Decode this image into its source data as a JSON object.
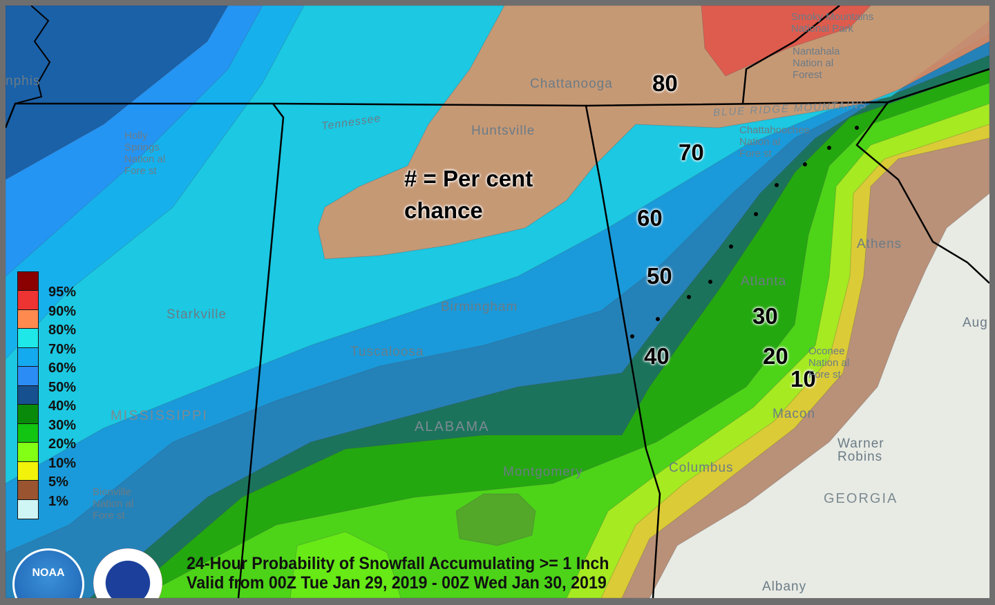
{
  "map": {
    "title_line1": "24-Hour Probability of Snowfall Accumulating >= 1 Inch",
    "title_line2": "Valid from 00Z Tue Jan 29, 2019 - 00Z Wed Jan 30, 2019",
    "note_line1": "# = Per cent",
    "note_line2": "chance",
    "contour_labels": [
      "80",
      "70",
      "60",
      "50",
      "40",
      "30",
      "20",
      "10"
    ],
    "place_labels": [
      "Chattanooga",
      "Huntsville",
      "Birmingham",
      "Tuscaloosa",
      "Starkville",
      "Montgomery",
      "Columbus",
      "Atlanta",
      "Athens",
      "Macon",
      "Warner\nRobins",
      "Albany",
      "Aug",
      "nphis",
      "Tennessee"
    ],
    "state_labels": [
      "MISSISSIPPI",
      "ALABAMA",
      "GEORGIA",
      "BLUE RIDGE MOUNTAINS"
    ],
    "forest_labels": [
      "Holly\nSprings\nNation al\nFore st",
      "Bienville\nNation al\nFore st",
      "Oconee\nNation al\nFore st",
      "Chattahoochee\nNation al\nFore st",
      "Nantahala\nNation al\nForest",
      "Smoky Mountains\nNational Park"
    ]
  },
  "legend": {
    "items": [
      {
        "label": "95%",
        "color": "#8b0000"
      },
      {
        "label": "90%",
        "color": "#ee3333"
      },
      {
        "label": "80%",
        "color": "#ff8a50"
      },
      {
        "label": "70%",
        "color": "#1ee8e8"
      },
      {
        "label": "60%",
        "color": "#14aaf0"
      },
      {
        "label": "50%",
        "color": "#2b8cf5"
      },
      {
        "label": "40%",
        "color": "#17508f"
      },
      {
        "label": "30%",
        "color": "#0a8a0a"
      },
      {
        "label": "20%",
        "color": "#12c512"
      },
      {
        "label": "10%",
        "color": "#82ff14"
      },
      {
        "label": "5%",
        "color": "#f2f20a"
      },
      {
        "label": "1%",
        "color": "#9a5530"
      },
      {
        "label": "",
        "color": "#cff5f5"
      }
    ]
  },
  "logos": {
    "noaa": "NOAA",
    "nws": "NATIONAL WEATHER SERVICE"
  }
}
